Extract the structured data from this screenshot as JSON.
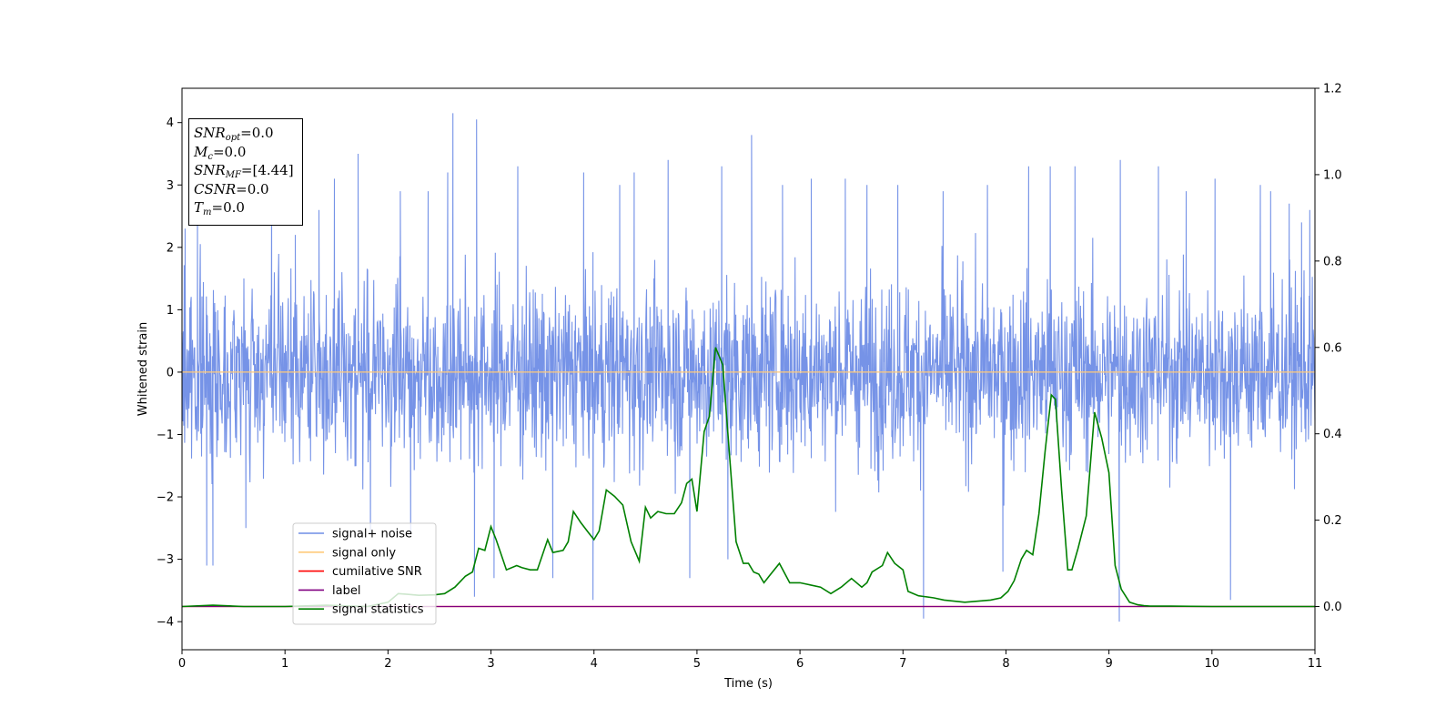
{
  "info_box": {
    "snr_opt": {
      "var": "SNR",
      "sub": "opt",
      "eq": "=",
      "value": "0.0"
    },
    "mc": {
      "var": "M",
      "sub": "c",
      "eq": "=",
      "value": "0.0"
    },
    "snr_mf": {
      "var": "SNR",
      "sub": "MF",
      "eq": "=",
      "value": "[4.44]"
    },
    "csnr": {
      "var": "CSNR",
      "eq": "=",
      "value": "0.0"
    },
    "tm": {
      "var": "T",
      "sub": "m",
      "eq": "=",
      "value": "0.0"
    }
  },
  "chart_data": {
    "type": "line",
    "xlabel": "Time (s)",
    "ylabel": "Whitened strain",
    "xlim": [
      0,
      11
    ],
    "ylim": [
      -4.45,
      4.55
    ],
    "y2lim": [
      -0.1,
      1.2
    ],
    "x_ticks": [
      "0",
      "1",
      "2",
      "3",
      "4",
      "5",
      "6",
      "7",
      "8",
      "9",
      "10",
      "11"
    ],
    "y_ticks": [
      "−4",
      "−3",
      "−2",
      "−1",
      "0",
      "1",
      "2",
      "3",
      "4"
    ],
    "y2_ticks": [
      "0.0",
      "0.2",
      "0.4",
      "0.6",
      "0.8",
      "1.0",
      "1.2"
    ],
    "legend": {
      "placement": "lower-left",
      "entries": [
        {
          "label": "signal+ noise",
          "color": "#6f8de6"
        },
        {
          "label": "signal only",
          "color": "#ffc97a"
        },
        {
          "label": "cumilative SNR",
          "color": "#ff0000"
        },
        {
          "label": "label",
          "color": "#800080"
        },
        {
          "label": "signal statistics",
          "color": "#008000"
        }
      ]
    },
    "series": [
      {
        "name": "signal+ noise",
        "axis": "left",
        "color": "#6f8de6",
        "note_samples": "dense whitened noise, typical amplitude about ±2 with spikes",
        "spikes": [
          [
            0.03,
            2.3
          ],
          [
            0.15,
            2.7
          ],
          [
            0.24,
            -3.1
          ],
          [
            0.3,
            -3.1
          ],
          [
            0.62,
            -2.5
          ],
          [
            0.87,
            3.0
          ],
          [
            1.1,
            2.2
          ],
          [
            1.33,
            2.6
          ],
          [
            1.48,
            3.1
          ],
          [
            1.71,
            3.5
          ],
          [
            1.83,
            -2.6
          ],
          [
            2.12,
            2.9
          ],
          [
            2.22,
            -2.6
          ],
          [
            2.39,
            2.9
          ],
          [
            2.58,
            3.2
          ],
          [
            2.63,
            4.15
          ],
          [
            2.86,
            4.05
          ],
          [
            2.84,
            -3.6
          ],
          [
            3.03,
            -3.3
          ],
          [
            3.26,
            3.3
          ],
          [
            3.6,
            -3.3
          ],
          [
            3.9,
            3.2
          ],
          [
            3.99,
            -3.65
          ],
          [
            4.25,
            3.0
          ],
          [
            4.39,
            3.2
          ],
          [
            4.72,
            3.4
          ],
          [
            4.93,
            -3.3
          ],
          [
            5.24,
            3.3
          ],
          [
            5.3,
            -3.0
          ],
          [
            5.53,
            3.8
          ],
          [
            5.83,
            3.0
          ],
          [
            6.11,
            3.1
          ],
          [
            6.44,
            3.1
          ],
          [
            6.65,
            3.0
          ],
          [
            6.95,
            3.0
          ],
          [
            7.2,
            -3.95
          ],
          [
            7.39,
            2.9
          ],
          [
            7.82,
            3.0
          ],
          [
            7.97,
            -3.2
          ],
          [
            8.22,
            3.3
          ],
          [
            8.43,
            3.3
          ],
          [
            8.67,
            3.3
          ],
          [
            9.11,
            3.4
          ],
          [
            9.1,
            -4.0
          ],
          [
            9.48,
            3.3
          ],
          [
            9.75,
            2.9
          ],
          [
            10.03,
            3.1
          ],
          [
            10.18,
            -3.65
          ],
          [
            10.47,
            3.0
          ],
          [
            10.57,
            2.9
          ],
          [
            10.75,
            2.7
          ],
          [
            10.87,
            2.4
          ],
          [
            10.95,
            2.6
          ]
        ]
      },
      {
        "name": "signal only",
        "axis": "left",
        "color": "#ffc97a",
        "x": [
          0,
          11
        ],
        "y": [
          0,
          0
        ]
      },
      {
        "name": "cumilative SNR",
        "axis": "right",
        "color": "#ff0000",
        "x": [
          0,
          11
        ],
        "y": [
          0,
          0
        ]
      },
      {
        "name": "label",
        "axis": "right",
        "color": "#800080",
        "x": [
          0,
          11
        ],
        "y": [
          0,
          0
        ]
      },
      {
        "name": "signal statistics",
        "axis": "right",
        "color": "#008000",
        "x": [
          0,
          0.3,
          0.6,
          1.0,
          1.4,
          1.8,
          2.0,
          2.1,
          2.2,
          2.3,
          2.45,
          2.55,
          2.65,
          2.75,
          2.82,
          2.88,
          2.94,
          3.0,
          3.05,
          3.15,
          3.25,
          3.3,
          3.38,
          3.45,
          3.55,
          3.6,
          3.7,
          3.75,
          3.8,
          3.87,
          3.95,
          4.0,
          4.05,
          4.12,
          4.2,
          4.28,
          4.36,
          4.44,
          4.5,
          4.55,
          4.62,
          4.7,
          4.78,
          4.85,
          4.9,
          4.95,
          5.0,
          5.07,
          5.12,
          5.18,
          5.25,
          5.3,
          5.38,
          5.45,
          5.5,
          5.55,
          5.6,
          5.65,
          5.7,
          5.8,
          5.9,
          6.0,
          6.1,
          6.2,
          6.3,
          6.4,
          6.5,
          6.6,
          6.65,
          6.7,
          6.8,
          6.85,
          6.92,
          7.0,
          7.05,
          7.15,
          7.3,
          7.4,
          7.6,
          7.85,
          7.95,
          8.02,
          8.08,
          8.15,
          8.2,
          8.26,
          8.32,
          8.38,
          8.44,
          8.48,
          8.54,
          8.6,
          8.64,
          8.7,
          8.78,
          8.86,
          8.93,
          9.0,
          9.06,
          9.12,
          9.2,
          9.28,
          9.34,
          9.4,
          9.5,
          9.6,
          10.0,
          11.0
        ],
        "y": [
          0.0,
          0.003,
          0.0,
          0.0,
          0.003,
          0.0,
          0.01,
          0.03,
          0.028,
          0.026,
          0.027,
          0.03,
          0.045,
          0.07,
          0.08,
          0.135,
          0.13,
          0.185,
          0.155,
          0.085,
          0.095,
          0.09,
          0.085,
          0.085,
          0.155,
          0.125,
          0.13,
          0.15,
          0.22,
          0.195,
          0.17,
          0.155,
          0.175,
          0.27,
          0.255,
          0.235,
          0.15,
          0.105,
          0.23,
          0.205,
          0.22,
          0.215,
          0.215,
          0.24,
          0.285,
          0.295,
          0.22,
          0.405,
          0.44,
          0.6,
          0.56,
          0.4,
          0.15,
          0.1,
          0.1,
          0.08,
          0.075,
          0.055,
          0.07,
          0.1,
          0.055,
          0.055,
          0.05,
          0.045,
          0.03,
          0.045,
          0.065,
          0.045,
          0.055,
          0.08,
          0.095,
          0.125,
          0.1,
          0.085,
          0.035,
          0.025,
          0.02,
          0.015,
          0.01,
          0.015,
          0.02,
          0.035,
          0.06,
          0.11,
          0.13,
          0.12,
          0.215,
          0.36,
          0.49,
          0.48,
          0.27,
          0.085,
          0.085,
          0.135,
          0.21,
          0.45,
          0.39,
          0.31,
          0.095,
          0.04,
          0.01,
          0.004,
          0.002,
          0.001,
          0.001,
          0.001,
          0.0,
          0.0
        ]
      }
    ]
  }
}
